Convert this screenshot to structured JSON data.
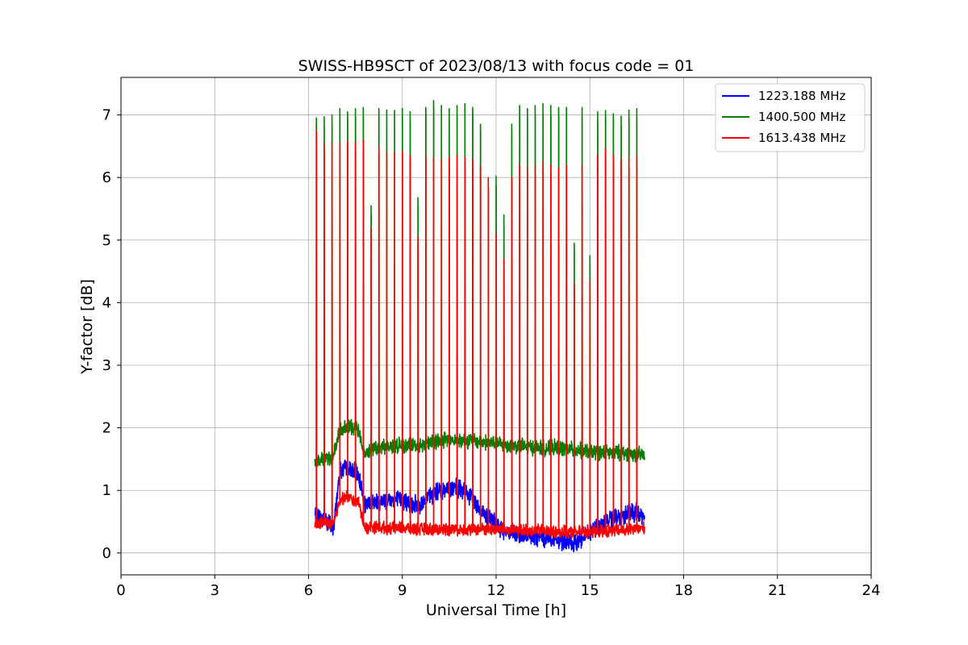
{
  "chart_data": {
    "type": "line",
    "title": "SWISS-HB9SCT of 2023/08/13 with focus code = 01",
    "xlabel": "Universal Time [h]",
    "ylabel": "Y-factor [dB]",
    "xlim": [
      0,
      24
    ],
    "ylim": [
      -0.35,
      7.6
    ],
    "xticks": [
      0,
      3,
      6,
      9,
      12,
      15,
      18,
      21,
      24
    ],
    "yticks": [
      0,
      1,
      2,
      3,
      4,
      5,
      6,
      7
    ],
    "grid": true,
    "legend_position": "top-right",
    "series": [
      {
        "name": "1223.188 MHz",
        "color": "#0000ff",
        "x": [
          6.2,
          6.5,
          6.8,
          7.0,
          7.2,
          7.4,
          7.6,
          7.8,
          8.0,
          8.5,
          9.0,
          9.5,
          10.0,
          10.5,
          11.0,
          11.5,
          12.0,
          12.5,
          13.0,
          13.5,
          14.0,
          14.5,
          15.0,
          15.5,
          16.0,
          16.5,
          16.75
        ],
        "values": [
          0.6,
          0.55,
          0.4,
          1.3,
          1.35,
          1.3,
          1.25,
          0.75,
          0.8,
          0.85,
          0.85,
          0.75,
          0.95,
          1.05,
          1.0,
          0.7,
          0.45,
          0.3,
          0.25,
          0.25,
          0.2,
          0.15,
          0.35,
          0.5,
          0.6,
          0.65,
          0.55
        ]
      },
      {
        "name": "1400.500 MHz",
        "color": "#008000",
        "x": [
          6.2,
          6.5,
          6.8,
          7.0,
          7.2,
          7.4,
          7.6,
          7.8,
          8.0,
          8.5,
          9.0,
          9.5,
          10.0,
          10.5,
          11.0,
          11.5,
          12.0,
          12.5,
          13.0,
          13.5,
          14.0,
          14.5,
          15.0,
          15.5,
          16.0,
          16.5,
          16.75
        ],
        "values": [
          1.45,
          1.5,
          1.55,
          1.95,
          2.0,
          2.0,
          2.0,
          1.55,
          1.65,
          1.7,
          1.72,
          1.72,
          1.78,
          1.82,
          1.8,
          1.78,
          1.75,
          1.72,
          1.7,
          1.68,
          1.68,
          1.65,
          1.62,
          1.6,
          1.6,
          1.58,
          1.55
        ]
      },
      {
        "name": "1613.438 MHz",
        "color": "#ff0000",
        "x": [
          6.2,
          6.5,
          6.8,
          7.0,
          7.2,
          7.4,
          7.6,
          7.8,
          8.0,
          8.5,
          9.0,
          9.5,
          10.0,
          10.5,
          11.0,
          11.5,
          12.0,
          12.5,
          13.0,
          13.5,
          14.0,
          14.5,
          15.0,
          15.5,
          16.0,
          16.5,
          16.75
        ],
        "values": [
          0.45,
          0.5,
          0.45,
          0.85,
          0.9,
          0.85,
          0.8,
          0.4,
          0.42,
          0.4,
          0.4,
          0.38,
          0.38,
          0.38,
          0.38,
          0.38,
          0.38,
          0.36,
          0.36,
          0.36,
          0.34,
          0.33,
          0.34,
          0.35,
          0.36,
          0.38,
          0.4
        ]
      }
    ],
    "calibration_spikes": {
      "t": [
        6.25,
        6.5,
        6.75,
        7.0,
        7.25,
        7.5,
        7.75,
        8.0,
        8.25,
        8.5,
        8.75,
        9.0,
        9.25,
        9.5,
        9.75,
        10.0,
        10.25,
        10.5,
        10.75,
        11.0,
        11.25,
        11.5,
        11.75,
        12.0,
        12.25,
        12.5,
        12.75,
        13.0,
        13.25,
        13.5,
        13.75,
        14.0,
        14.25,
        14.5,
        14.75,
        15.0,
        15.25,
        15.5,
        15.75,
        16.0,
        16.25,
        16.5
      ],
      "green_peak": [
        6.95,
        6.97,
        7.0,
        7.1,
        7.05,
        7.1,
        7.12,
        5.55,
        7.1,
        7.08,
        7.07,
        7.1,
        7.05,
        5.68,
        7.12,
        7.23,
        7.15,
        7.1,
        7.15,
        7.18,
        7.12,
        6.85,
        5.95,
        6.02,
        5.4,
        6.85,
        7.15,
        7.1,
        7.15,
        7.18,
        7.15,
        7.12,
        7.12,
        4.95,
        7.12,
        4.75,
        7.05,
        7.07,
        7.02,
        6.98,
        7.08,
        7.1
      ],
      "red_peak": [
        6.75,
        6.55,
        6.57,
        6.55,
        6.57,
        6.55,
        6.6,
        5.2,
        6.5,
        6.4,
        6.4,
        6.42,
        6.35,
        5.05,
        6.35,
        6.32,
        6.3,
        6.32,
        6.35,
        6.32,
        6.3,
        6.2,
        6.0,
        5.1,
        4.7,
        6.0,
        6.2,
        6.15,
        6.2,
        6.25,
        6.2,
        6.15,
        6.2,
        4.3,
        6.2,
        4.35,
        6.35,
        6.45,
        6.35,
        6.3,
        6.32,
        6.35
      ]
    }
  }
}
